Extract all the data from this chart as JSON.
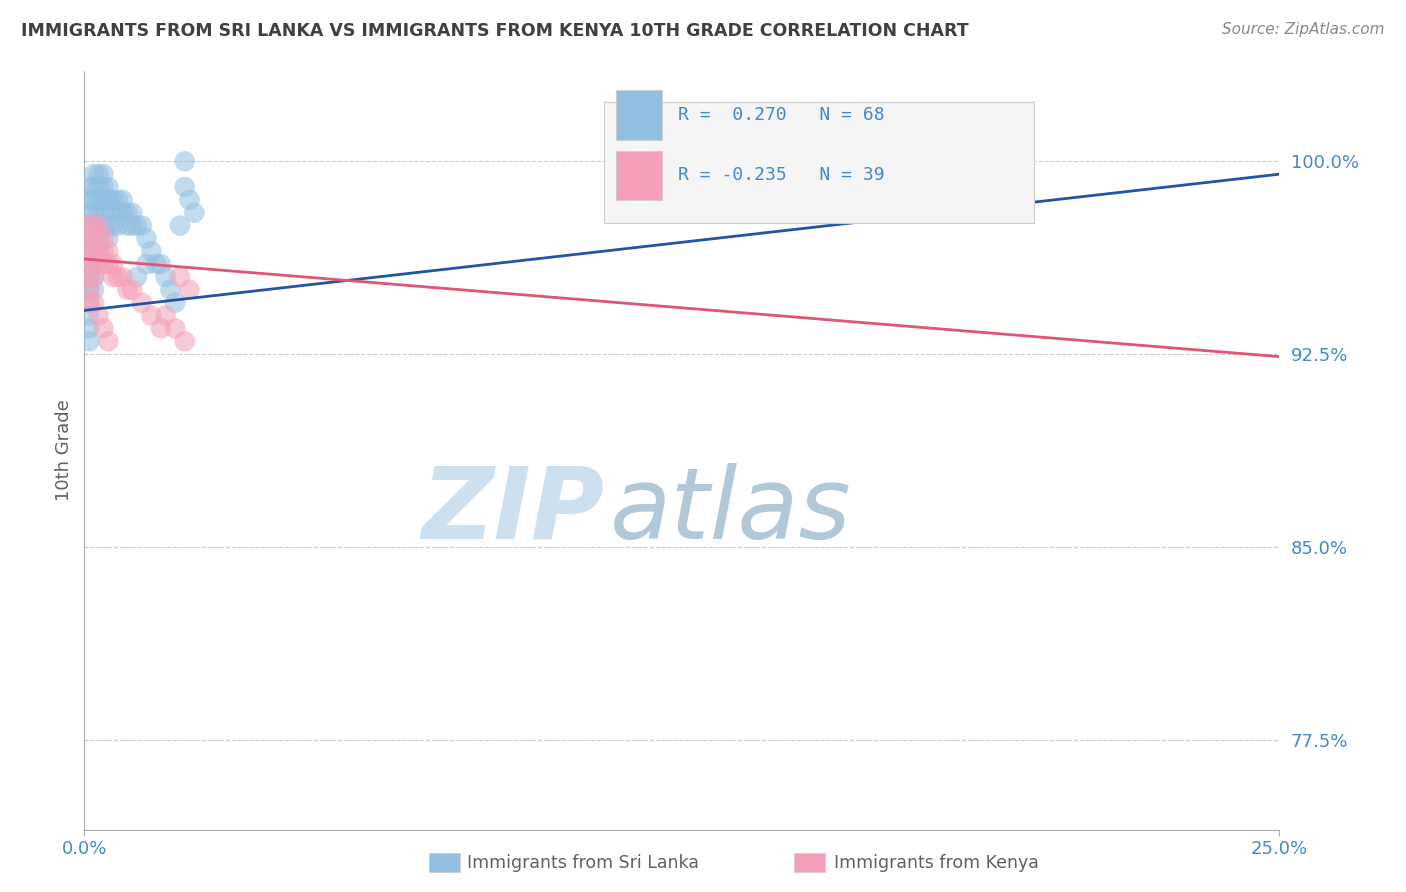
{
  "title": "IMMIGRANTS FROM SRI LANKA VS IMMIGRANTS FROM KENYA 10TH GRADE CORRELATION CHART",
  "source": "Source: ZipAtlas.com",
  "ylabel": "10th Grade",
  "blue_color": "#92bfe0",
  "pink_color": "#f4a0b8",
  "blue_line_color": "#2255a0",
  "pink_line_color": "#e05575",
  "title_color": "#404040",
  "axis_label_color": "#606060",
  "tick_color": "#4488cc",
  "watermark_zip_color": "#cce0f0",
  "watermark_atlas_color": "#b0c8d8",
  "background_color": "#ffffff",
  "grid_color": "#cccccc",
  "legend_box_color": "#f5f5f5",
  "legend_border_color": "#cccccc",
  "xlim": [
    0.0,
    0.25
  ],
  "ylim": [
    0.74,
    1.035
  ],
  "yticks": [
    0.775,
    0.85,
    0.925,
    1.0
  ],
  "ytick_labels": [
    "77.5%",
    "85.0%",
    "92.5%",
    "100.0%"
  ],
  "xtick_left": "0.0%",
  "xtick_right": "25.0%",
  "sri_lanka_line_x0": 0.0,
  "sri_lanka_line_y0": 0.942,
  "sri_lanka_line_x1": 0.25,
  "sri_lanka_line_y1": 0.995,
  "kenya_line_x0": 0.0,
  "kenya_line_y0": 0.962,
  "kenya_line_x1": 0.25,
  "kenya_line_y1": 0.924,
  "sri_lanka_x": [
    0.001,
    0.001,
    0.001,
    0.001,
    0.001,
    0.001,
    0.001,
    0.001,
    0.001,
    0.001,
    0.001,
    0.001,
    0.001,
    0.002,
    0.002,
    0.002,
    0.002,
    0.002,
    0.002,
    0.002,
    0.002,
    0.002,
    0.002,
    0.003,
    0.003,
    0.003,
    0.003,
    0.003,
    0.003,
    0.003,
    0.004,
    0.004,
    0.004,
    0.004,
    0.004,
    0.005,
    0.005,
    0.005,
    0.005,
    0.006,
    0.006,
    0.006,
    0.007,
    0.007,
    0.007,
    0.008,
    0.008,
    0.009,
    0.009,
    0.01,
    0.01,
    0.011,
    0.012,
    0.013,
    0.014,
    0.015,
    0.016,
    0.017,
    0.018,
    0.019,
    0.02,
    0.021,
    0.022,
    0.023,
    0.011,
    0.013,
    0.005,
    0.021
  ],
  "sri_lanka_y": [
    0.99,
    0.985,
    0.98,
    0.975,
    0.97,
    0.965,
    0.96,
    0.955,
    0.95,
    0.945,
    0.94,
    0.935,
    0.93,
    0.995,
    0.99,
    0.985,
    0.98,
    0.975,
    0.97,
    0.965,
    0.96,
    0.955,
    0.95,
    0.995,
    0.99,
    0.985,
    0.98,
    0.975,
    0.97,
    0.965,
    0.995,
    0.99,
    0.985,
    0.98,
    0.975,
    0.99,
    0.985,
    0.975,
    0.97,
    0.985,
    0.98,
    0.975,
    0.985,
    0.98,
    0.975,
    0.985,
    0.98,
    0.98,
    0.975,
    0.98,
    0.975,
    0.975,
    0.975,
    0.97,
    0.965,
    0.96,
    0.96,
    0.955,
    0.95,
    0.945,
    0.975,
    0.99,
    0.985,
    0.98,
    0.955,
    0.96,
    0.985,
    1.0
  ],
  "kenya_x": [
    0.001,
    0.001,
    0.001,
    0.001,
    0.001,
    0.001,
    0.001,
    0.002,
    0.002,
    0.002,
    0.002,
    0.002,
    0.003,
    0.003,
    0.003,
    0.003,
    0.004,
    0.004,
    0.004,
    0.005,
    0.005,
    0.006,
    0.006,
    0.007,
    0.008,
    0.009,
    0.01,
    0.012,
    0.014,
    0.016,
    0.02,
    0.022,
    0.017,
    0.019,
    0.021,
    0.002,
    0.003,
    0.004,
    0.005
  ],
  "kenya_y": [
    0.975,
    0.97,
    0.965,
    0.96,
    0.955,
    0.95,
    0.945,
    0.975,
    0.97,
    0.965,
    0.96,
    0.955,
    0.975,
    0.97,
    0.965,
    0.96,
    0.97,
    0.965,
    0.96,
    0.965,
    0.96,
    0.96,
    0.955,
    0.955,
    0.955,
    0.95,
    0.95,
    0.945,
    0.94,
    0.935,
    0.955,
    0.95,
    0.94,
    0.935,
    0.93,
    0.945,
    0.94,
    0.935,
    0.93
  ]
}
